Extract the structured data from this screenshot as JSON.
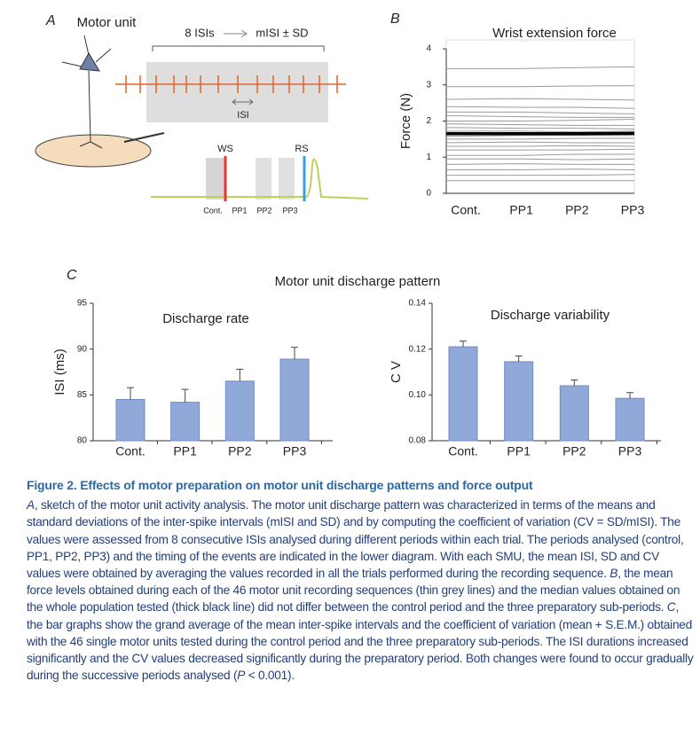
{
  "panel_a": {
    "label": "A",
    "title": "Motor unit",
    "isi_text": "8 ISIs",
    "arrow_text": "mISI ± SD",
    "isi_label": "ISI",
    "ws": "WS",
    "rs": "RS",
    "periods": [
      "Cont.",
      "PP1",
      "PP2",
      "PP3"
    ]
  },
  "panel_c": {
    "label": "C",
    "title": "Motor unit discharge pattern"
  },
  "chart_data": [
    {
      "type": "line",
      "label": "B",
      "title": "Wrist extension force",
      "ylabel": "Force (N)",
      "categories": [
        "Cont.",
        "PP1",
        "PP2",
        "PP3"
      ],
      "ylim": [
        0,
        4
      ],
      "yticks": [
        0,
        1,
        2,
        3,
        4
      ],
      "series": [
        {
          "color": "#9a9a9a",
          "width": 1,
          "values": [
            3.45,
            3.45,
            3.48,
            3.5
          ]
        },
        {
          "color": "#9a9a9a",
          "width": 1,
          "values": [
            2.95,
            2.95,
            2.97,
            2.98
          ]
        },
        {
          "color": "#9a9a9a",
          "width": 1,
          "values": [
            2.6,
            2.62,
            2.6,
            2.58
          ]
        },
        {
          "color": "#9a9a9a",
          "width": 1,
          "values": [
            2.4,
            2.38,
            2.38,
            2.35
          ]
        },
        {
          "color": "#9a9a9a",
          "width": 1,
          "values": [
            2.25,
            2.25,
            2.22,
            2.2
          ]
        },
        {
          "color": "#9a9a9a",
          "width": 1,
          "values": [
            2.15,
            2.12,
            2.1,
            2.1
          ]
        },
        {
          "color": "#9a9a9a",
          "width": 1,
          "values": [
            2.0,
            2.0,
            2.02,
            2.05
          ]
        },
        {
          "color": "#9a9a9a",
          "width": 1,
          "values": [
            1.92,
            1.9,
            1.88,
            1.88
          ]
        },
        {
          "color": "#9a9a9a",
          "width": 1,
          "values": [
            1.82,
            1.8,
            1.8,
            1.78
          ]
        },
        {
          "color": "#9a9a9a",
          "width": 1,
          "values": [
            1.72,
            1.72,
            1.7,
            1.72
          ]
        },
        {
          "color": "#9a9a9a",
          "width": 1,
          "values": [
            1.58,
            1.6,
            1.6,
            1.6
          ]
        },
        {
          "color": "#9a9a9a",
          "width": 1,
          "values": [
            1.5,
            1.5,
            1.52,
            1.52
          ]
        },
        {
          "color": "#9a9a9a",
          "width": 1,
          "values": [
            1.4,
            1.42,
            1.4,
            1.4
          ]
        },
        {
          "color": "#9a9a9a",
          "width": 1,
          "values": [
            1.3,
            1.3,
            1.32,
            1.3
          ]
        },
        {
          "color": "#9a9a9a",
          "width": 1,
          "values": [
            1.2,
            1.2,
            1.2,
            1.22
          ]
        },
        {
          "color": "#9a9a9a",
          "width": 1,
          "values": [
            1.05,
            1.05,
            1.08,
            1.08
          ]
        },
        {
          "color": "#9a9a9a",
          "width": 1,
          "values": [
            0.95,
            0.95,
            0.93,
            0.95
          ]
        },
        {
          "color": "#9a9a9a",
          "width": 1,
          "values": [
            0.8,
            0.82,
            0.8,
            0.8
          ]
        },
        {
          "color": "#9a9a9a",
          "width": 1,
          "values": [
            0.65,
            0.65,
            0.67,
            0.65
          ]
        },
        {
          "color": "#9a9a9a",
          "width": 1,
          "values": [
            0.5,
            0.5,
            0.5,
            0.52
          ]
        },
        {
          "color": "#9a9a9a",
          "width": 1,
          "values": [
            0.35,
            0.35,
            0.35,
            0.35
          ]
        },
        {
          "color": "#000000",
          "width": 3.5,
          "values": [
            1.65,
            1.65,
            1.65,
            1.66
          ]
        }
      ]
    },
    {
      "type": "bar",
      "title": "Discharge rate",
      "ylabel": "ISI (ms)",
      "categories": [
        "Cont.",
        "PP1",
        "PP2",
        "PP3"
      ],
      "values": [
        84.5,
        84.2,
        86.5,
        88.9
      ],
      "errors": [
        1.3,
        1.4,
        1.3,
        1.3
      ],
      "color": "#90a9d9",
      "ylim": [
        80,
        95
      ],
      "yticks": [
        80,
        85,
        90,
        95
      ]
    },
    {
      "type": "bar",
      "title": "Discharge variability",
      "ylabel": "C V",
      "categories": [
        "Cont.",
        "PP1",
        "PP2",
        "PP3"
      ],
      "values": [
        0.121,
        0.1145,
        0.104,
        0.0985
      ],
      "errors": [
        0.0025,
        0.0025,
        0.0025,
        0.0025
      ],
      "color": "#90a9d9",
      "ylim": [
        0.08,
        0.14
      ],
      "yticks": [
        0.08,
        {
          "value": 0.1,
          "label": "0.10"
        },
        0.12,
        0.14
      ]
    }
  ],
  "caption": {
    "title": "Figure 2. Effects of motor preparation on motor unit discharge patterns and force output",
    "body": [
      {
        "text": "A",
        "italic": true
      },
      {
        "text": ", sketch of the motor unit activity analysis. The motor unit discharge pattern was characterized in terms of the means and standard deviations of the inter-spike intervals (mISI and SD) and by computing the coefficient of variation (CV = SD/mISI). The values were assessed from 8 consecutive ISIs analysed during different periods within each trial. The periods analysed (control, PP1, PP2, PP3) and the timing of the events are indicated in the lower diagram. With each SMU, the mean ISI, SD and CV values were obtained by averaging the values recorded in all the trials performed during the recording sequence. "
      },
      {
        "text": "B",
        "italic": true
      },
      {
        "text": ", the mean force levels obtained during each of the 46 motor unit recording sequences (thin grey lines) and the median values obtained on the whole population tested (thick black line) did not differ between the control period and the three preparatory sub-periods. "
      },
      {
        "text": "C",
        "italic": true
      },
      {
        "text": ", the bar graphs show the grand average of the mean inter-spike intervals and the coefficient of variation (mean + S.E.M.) obtained with the 46 single motor units tested during the control period and the three preparatory sub-periods. The ISI durations increased significantly and the CV values decreased significantly during the preparatory period. Both changes were found to occur gradually during the successive periods analysed ("
      },
      {
        "text": "P",
        "italic": true
      },
      {
        "text": " < 0.001)."
      }
    ]
  }
}
